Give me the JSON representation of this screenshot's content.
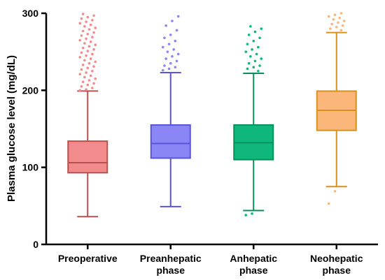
{
  "chart_data": {
    "type": "box",
    "ylabel": "Plasma glucose level (mg/dL)",
    "ylim": [
      0,
      300
    ],
    "yticks": [
      0,
      100,
      200,
      300
    ],
    "grid": false,
    "categories": [
      {
        "label_lines": [
          "Preoperative"
        ],
        "color": "#f28b8b",
        "stroke": "#b7504f",
        "min": 36,
        "q1": 93,
        "median": 106,
        "q3": 134,
        "max": 199,
        "outliers": [
          200,
          201,
          203,
          205,
          207,
          209,
          211,
          213,
          215,
          217,
          219,
          221,
          223,
          225,
          227,
          229,
          231,
          233,
          235,
          237,
          239,
          241,
          243,
          245,
          247,
          249,
          251,
          253,
          255,
          257,
          259,
          261,
          263,
          265,
          267,
          269,
          271,
          273,
          275,
          277,
          279,
          281,
          283,
          285,
          287,
          289,
          291,
          293,
          295,
          297,
          299
        ]
      },
      {
        "label_lines": [
          "Preanhepatic",
          "phase"
        ],
        "color": "#8b86f5",
        "stroke": "#5a55d8",
        "min": 49,
        "q1": 112,
        "median": 131,
        "q3": 155,
        "max": 223,
        "outliers": [
          226,
          228,
          230,
          232,
          235,
          238,
          241,
          244,
          247,
          250,
          253,
          256,
          260,
          264,
          268,
          272,
          278,
          284,
          290,
          296
        ]
      },
      {
        "label_lines": [
          "Anhepatic",
          "phase"
        ],
        "color": "#0fb87a",
        "stroke": "#0a8f5c",
        "min": 44,
        "q1": 110,
        "median": 132,
        "q3": 155,
        "max": 222,
        "outliers": [
          38,
          40,
          225,
          228,
          230,
          232,
          235,
          238,
          241,
          244,
          247,
          250,
          253,
          256,
          260,
          264,
          268,
          272,
          276,
          280,
          283
        ]
      },
      {
        "label_lines": [
          "Neohepatic",
          "phase"
        ],
        "color": "#fbb77a",
        "stroke": "#d8901f",
        "min": 75,
        "q1": 148,
        "median": 174,
        "q3": 199,
        "max": 275,
        "outliers": [
          53,
          69,
          278,
          280,
          282,
          284,
          286,
          288,
          290,
          292,
          294,
          296,
          298,
          300
        ]
      }
    ]
  }
}
